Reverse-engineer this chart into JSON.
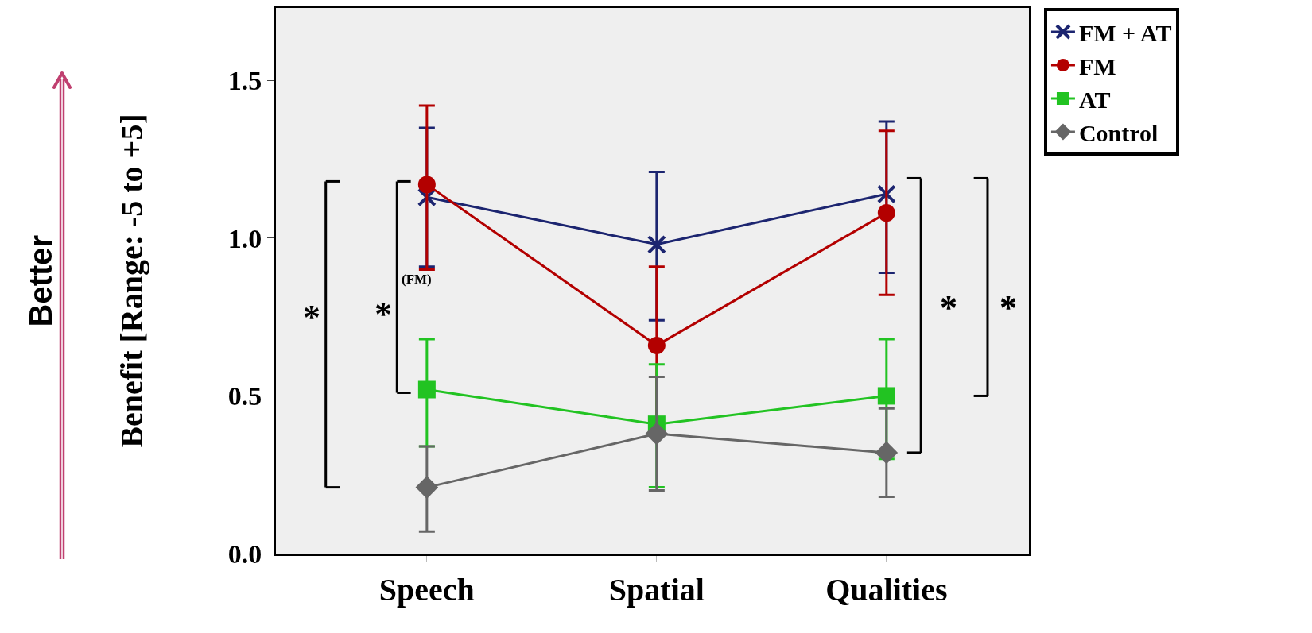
{
  "chart_data": {
    "type": "line",
    "ylabel": "Benefit [Range: -5 to +5]",
    "categories": [
      "Speech",
      "Spatial",
      "Qualities"
    ],
    "ylim": [
      0,
      1.73
    ],
    "yticks": [
      {
        "value": 0,
        "label": "0.0"
      },
      {
        "value": 0.5,
        "label": "0.5"
      },
      {
        "value": 1,
        "label": "1.0"
      },
      {
        "value": 1.5,
        "label": "1.5"
      }
    ],
    "grid": false,
    "legend": "top right",
    "series": [
      {
        "name": "FM + AT",
        "color": "#1c2570",
        "marker": "cross",
        "values": [
          1.13,
          0.98,
          1.14
        ],
        "errors": [
          [
            0.91,
            1.35
          ],
          [
            0.74,
            1.21
          ],
          [
            0.89,
            1.37
          ]
        ]
      },
      {
        "name": "FM",
        "color": "#b30000",
        "marker": "circle",
        "values": [
          1.17,
          0.66,
          1.08
        ],
        "errors": [
          [
            0.9,
            1.42
          ],
          [
            0.42,
            0.91
          ],
          [
            0.82,
            1.34
          ]
        ]
      },
      {
        "name": "AT",
        "color": "#22c322",
        "marker": "square",
        "values": [
          0.52,
          0.41,
          0.5
        ],
        "errors": [
          [
            0.34,
            0.68
          ],
          [
            0.21,
            0.6
          ],
          [
            0.3,
            0.68
          ]
        ]
      },
      {
        "name": "Control",
        "color": "#666666",
        "marker": "diamond",
        "values": [
          0.21,
          0.38,
          0.32
        ],
        "errors": [
          [
            0.07,
            0.34
          ],
          [
            0.2,
            0.56
          ],
          [
            0.18,
            0.46
          ]
        ]
      }
    ],
    "annotations": [
      "*",
      "*",
      "(FM)",
      "*",
      "*",
      "Better"
    ]
  }
}
